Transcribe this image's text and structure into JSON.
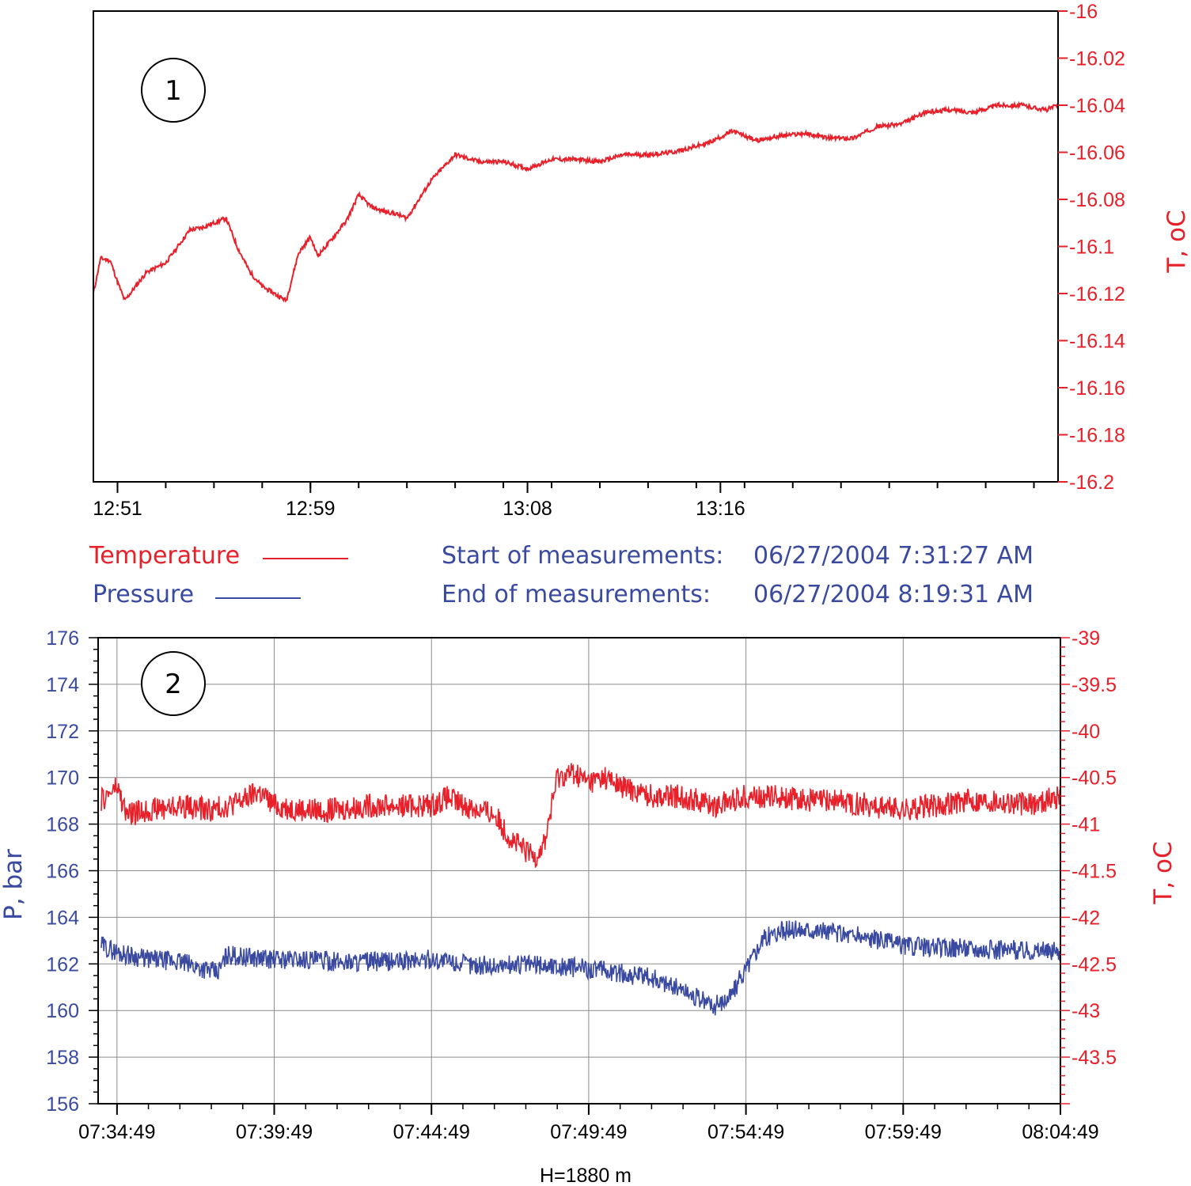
{
  "colors": {
    "temperature": "#e8202a",
    "pressure": "#3a4aa0",
    "axis": "#000000",
    "grid": "#8c8c8c"
  },
  "legend": {
    "temperature_label": "Temperature",
    "pressure_label": "Pressure",
    "start_label": "Start of measurements:",
    "start_value": "06/27/2004 7:31:27 AM",
    "end_label": "End of measurements:",
    "end_value": "06/27/2004 8:19:31 AM"
  },
  "chart_data": [
    {
      "type": "line",
      "panel_label": "1",
      "xlabel": "",
      "ylabel_right": "T, oC",
      "x_tick_labels": [
        "12:51",
        "12:59",
        "13:08",
        "13:16"
      ],
      "x_tick_minutes": [
        0,
        8,
        17,
        25
      ],
      "x_range_minutes": [
        -1,
        39
      ],
      "ylim": [
        -16.2,
        -16.0
      ],
      "y_ticks": [
        -16,
        -16.02,
        -16.04,
        -16.06,
        -16.08,
        -16.1,
        -16.12,
        -16.14,
        -16.16,
        -16.18,
        -16.2
      ],
      "y_tick_labels": [
        "-16",
        "-16.02",
        "-16.04",
        "-16.06",
        "-16.08",
        "-16.1",
        "-16.12",
        "-16.14",
        "-16.16",
        "-16.18",
        "-16.2"
      ],
      "grid": false,
      "series": [
        {
          "name": "Temperature",
          "axis": "right",
          "x_minutes": [
            -1,
            -0.7,
            -0.3,
            0,
            0.3,
            1.2,
            2,
            3,
            3.5,
            4.5,
            5,
            5.5,
            6,
            7,
            7.5,
            8,
            8.3,
            8.8,
            9.5,
            10,
            10.5,
            11,
            11.5,
            12,
            13,
            14,
            15,
            16,
            17,
            18,
            19,
            20,
            21,
            22,
            23,
            23.8,
            24.5,
            25.5,
            26.5,
            27.5,
            28.5,
            29.5,
            30.5,
            31.5,
            32.5,
            33.5,
            34.5,
            35.5,
            36.5,
            37.5,
            38,
            38.5,
            39
          ],
          "values": [
            -16.12,
            -16.105,
            -16.106,
            -16.115,
            -16.123,
            -16.111,
            -16.107,
            -16.093,
            -16.092,
            -16.088,
            -16.101,
            -16.111,
            -16.117,
            -16.123,
            -16.103,
            -16.096,
            -16.104,
            -16.098,
            -16.089,
            -16.078,
            -16.083,
            -16.085,
            -16.086,
            -16.088,
            -16.072,
            -16.061,
            -16.064,
            -16.064,
            -16.067,
            -16.063,
            -16.063,
            -16.064,
            -16.061,
            -16.061,
            -16.06,
            -16.058,
            -16.056,
            -16.051,
            -16.055,
            -16.053,
            -16.052,
            -16.054,
            -16.054,
            -16.049,
            -16.048,
            -16.043,
            -16.042,
            -16.043,
            -16.04,
            -16.04,
            -16.041,
            -16.042,
            -16.04
          ]
        }
      ]
    },
    {
      "type": "line",
      "panel_label": "2",
      "xlabel": "H=1880 m",
      "ylabel_left": "P, bar",
      "ylabel_right": "T, oC",
      "x_tick_labels": [
        "07:34:49",
        "07:39:49",
        "07:44:49",
        "07:49:49",
        "07:54:49",
        "07:59:49",
        "08:04:49"
      ],
      "x_tick_minutes": [
        0,
        5,
        10,
        15,
        20,
        25,
        30
      ],
      "x_range_minutes": [
        -0.6,
        30
      ],
      "ylim_left": [
        156,
        176
      ],
      "y_ticks_left": [
        156,
        158,
        160,
        162,
        164,
        166,
        168,
        170,
        172,
        174,
        176
      ],
      "y_tick_labels_left": [
        "156",
        "158",
        "160",
        "162",
        "164",
        "166",
        "168",
        "170",
        "172",
        "174",
        "176"
      ],
      "ylim_right": [
        -44,
        -39
      ],
      "y_ticks_right": [
        -39,
        -39.5,
        -40,
        -40.5,
        -41,
        -41.5,
        -42,
        -42.5,
        -43,
        -43.5
      ],
      "y_tick_labels_right": [
        "-39",
        "-39.5",
        "-40",
        "-40.5",
        "-41",
        "-41.5",
        "-42",
        "-42.5",
        "-43",
        "-43.5"
      ],
      "grid": true,
      "series": [
        {
          "name": "Temperature",
          "axis": "right",
          "x_minutes": [
            -0.5,
            0,
            0.3,
            1,
            2,
            3,
            4,
            4.5,
            5,
            6,
            7,
            8,
            9,
            10,
            10.5,
            11,
            12,
            12.5,
            13,
            13.3,
            13.6,
            14,
            14.5,
            15,
            15.5,
            16,
            17,
            18,
            19,
            20,
            21,
            22,
            23,
            24,
            25,
            26,
            27,
            28,
            29,
            30
          ],
          "values": [
            -40.75,
            -40.6,
            -40.9,
            -40.85,
            -40.8,
            -40.85,
            -40.75,
            -40.65,
            -40.8,
            -40.85,
            -40.85,
            -40.8,
            -40.8,
            -40.8,
            -40.72,
            -40.8,
            -40.9,
            -41.15,
            -41.3,
            -41.35,
            -41.2,
            -40.5,
            -40.45,
            -40.55,
            -40.5,
            -40.6,
            -40.7,
            -40.7,
            -40.8,
            -40.7,
            -40.7,
            -40.75,
            -40.75,
            -40.8,
            -40.85,
            -40.8,
            -40.75,
            -40.75,
            -40.8,
            -40.7
          ]
        },
        {
          "name": "Pressure",
          "axis": "left",
          "x_minutes": [
            -0.5,
            0,
            1,
            2,
            3,
            3.2,
            3.5,
            4,
            5,
            6,
            7,
            8,
            9,
            10,
            11,
            12,
            13,
            14,
            15,
            16,
            17,
            18,
            18.5,
            19,
            19.5,
            20,
            20.5,
            21,
            22,
            23,
            24,
            25,
            26,
            27,
            28,
            29,
            30
          ],
          "values": [
            162.8,
            162.5,
            162.2,
            162.1,
            161.7,
            161.6,
            162.4,
            162.3,
            162.2,
            162.2,
            162.1,
            162.1,
            162.1,
            162.2,
            162.0,
            161.9,
            162.0,
            161.9,
            161.8,
            161.6,
            161.4,
            160.9,
            160.5,
            160.2,
            160.6,
            161.8,
            163.0,
            163.4,
            163.5,
            163.3,
            163.1,
            162.8,
            162.7,
            162.7,
            162.6,
            162.6,
            162.5
          ]
        }
      ]
    }
  ]
}
